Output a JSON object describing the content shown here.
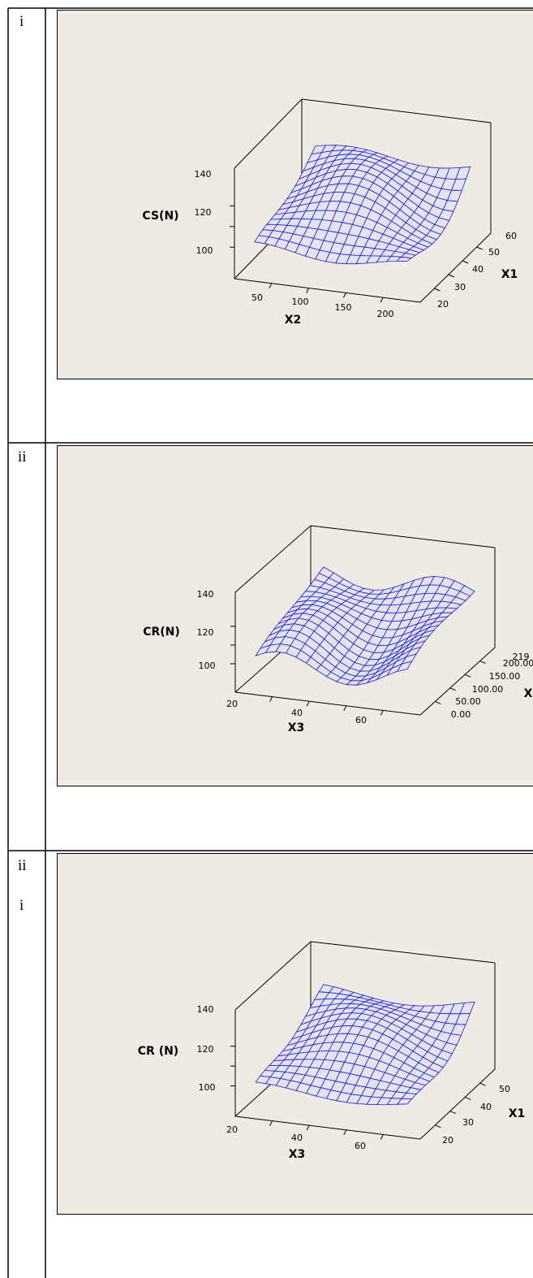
{
  "rows": [
    {
      "label": [
        "i"
      ]
    },
    {
      "label": [
        "ii"
      ]
    },
    {
      "label": [
        "ii",
        "i"
      ]
    }
  ],
  "colors": {
    "panel_bg": "#efebe2",
    "surface_fill": "#e4e4ee",
    "mesh": "#1a1aee",
    "axes": "#000000"
  },
  "chart_data": [
    {
      "type": "surface",
      "title": "",
      "zlabel": "CS(N)",
      "xlabel": "X2",
      "ylabel": "X1",
      "zticks": [
        "100",
        "120",
        "140"
      ],
      "xticks": [
        "50",
        "100",
        "150",
        "200"
      ],
      "yticks": [
        "20",
        "30",
        "40",
        "50",
        "60"
      ],
      "zlim": [
        90,
        150
      ],
      "xlim": [
        20,
        230
      ],
      "ylim": [
        15,
        65
      ],
      "grid": "15x15",
      "z_range_estimate": [
        104,
        140
      ]
    },
    {
      "type": "surface",
      "title": "",
      "zlabel": "CR(N)",
      "xlabel": "X3",
      "ylabel": "X",
      "zticks": [
        "100",
        "120",
        "140"
      ],
      "xticks": [
        "20",
        "40",
        "60"
      ],
      "yticks": [
        "0.00",
        "50.00",
        "100.00",
        "150.00",
        "200.00",
        "219"
      ],
      "zlim": [
        90,
        150
      ],
      "xlim": [
        15,
        75
      ],
      "ylim": [
        -10,
        225
      ],
      "grid": "15x15",
      "z_range_estimate": [
        100,
        138
      ]
    },
    {
      "type": "surface",
      "title": "",
      "zlabel": "CR (N)",
      "xlabel": "X3",
      "ylabel": "X1",
      "zticks": [
        "100",
        "120",
        "140"
      ],
      "xticks": [
        "20",
        "40",
        "60"
      ],
      "yticks": [
        "20",
        "30",
        "40",
        "50"
      ],
      "zlim": [
        90,
        150
      ],
      "xlim": [
        15,
        75
      ],
      "ylim": [
        15,
        55
      ],
      "grid": "15x15",
      "z_range_estimate": [
        104,
        140
      ]
    }
  ]
}
